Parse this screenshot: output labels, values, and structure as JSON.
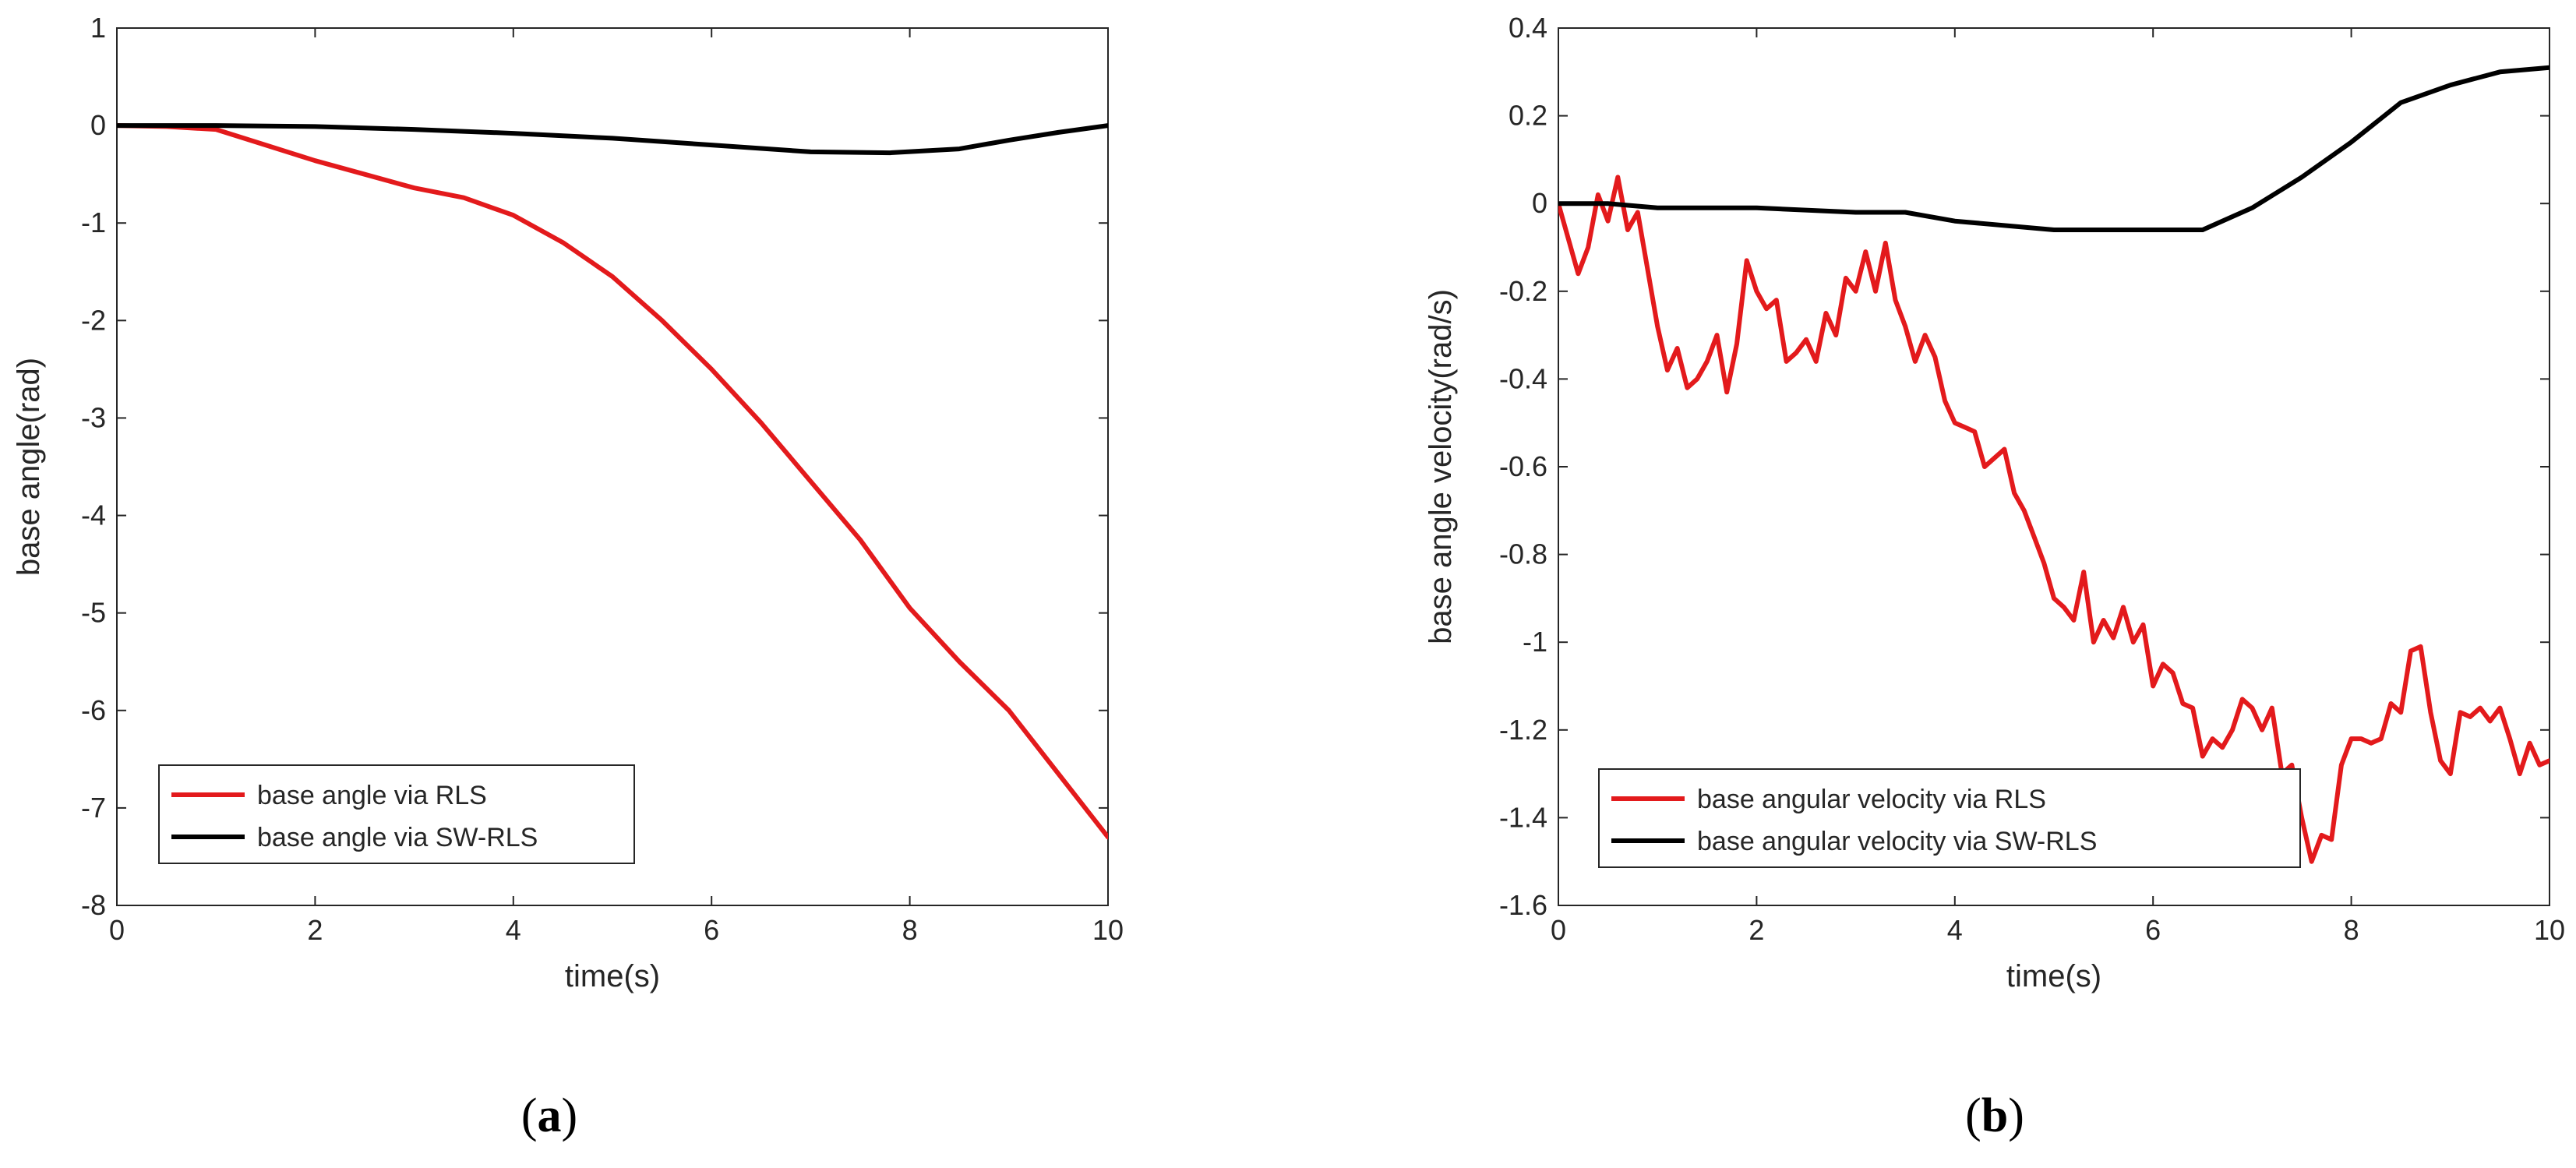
{
  "colors": {
    "rls": "#e31a1c",
    "swrls": "#000000",
    "axis": "#262626",
    "background": "#ffffff"
  },
  "chart_data": [
    {
      "type": "line",
      "panel": "a",
      "caption": {
        "open": "(",
        "letter": "a",
        "close": ")"
      },
      "title": "",
      "xlabel": "time(s)",
      "ylabel": "base angle(rad)",
      "xlim": [
        0,
        10
      ],
      "ylim": [
        -8,
        1
      ],
      "xticks": [
        0,
        2,
        4,
        6,
        8,
        10
      ],
      "xtick_labels": [
        "0",
        "2",
        "4",
        "6",
        "8",
        "10"
      ],
      "yticks": [
        1,
        0,
        -1,
        -2,
        -3,
        -4,
        -5,
        -6,
        -7,
        -8
      ],
      "ytick_labels": [
        "1",
        "0",
        "-1",
        "-2",
        "-3",
        "-4",
        "-5",
        "-6",
        "-7",
        "-8"
      ],
      "grid": false,
      "legend_position": "bottom-left",
      "series": [
        {
          "name": "base angle via RLS",
          "color": "#e31a1c",
          "points": [
            [
              0,
              0
            ],
            [
              0.5,
              -0.01
            ],
            [
              1,
              -0.04
            ],
            [
              1.5,
              -0.2
            ],
            [
              2,
              -0.36
            ],
            [
              2.5,
              -0.5
            ],
            [
              3,
              -0.64
            ],
            [
              3.5,
              -0.74
            ],
            [
              4,
              -0.92
            ],
            [
              4.5,
              -1.2
            ],
            [
              5,
              -1.55
            ],
            [
              5.5,
              -2.0
            ],
            [
              6,
              -2.5
            ],
            [
              6.5,
              -3.05
            ],
            [
              7,
              -3.65
            ],
            [
              7.5,
              -4.25
            ],
            [
              8,
              -4.95
            ],
            [
              8.5,
              -5.5
            ],
            [
              9,
              -6.0
            ],
            [
              9.5,
              -6.65
            ],
            [
              10,
              -7.3
            ]
          ]
        },
        {
          "name": "base angle via SW-RLS",
          "color": "#000000",
          "points": [
            [
              0,
              0
            ],
            [
              1,
              0
            ],
            [
              2,
              -0.01
            ],
            [
              3,
              -0.04
            ],
            [
              4,
              -0.08
            ],
            [
              5,
              -0.13
            ],
            [
              6,
              -0.2
            ],
            [
              7,
              -0.27
            ],
            [
              7.8,
              -0.28
            ],
            [
              8.5,
              -0.24
            ],
            [
              9,
              -0.15
            ],
            [
              9.5,
              -0.07
            ],
            [
              10,
              0
            ]
          ]
        }
      ]
    },
    {
      "type": "line",
      "panel": "b",
      "caption": {
        "open": "(",
        "letter": "b",
        "close": ")"
      },
      "title": "",
      "xlabel": "time(s)",
      "ylabel": "base angle velocity(rad/s)",
      "xlim": [
        0,
        10
      ],
      "ylim": [
        -1.6,
        0.4
      ],
      "xticks": [
        0,
        2,
        4,
        6,
        8,
        10
      ],
      "xtick_labels": [
        "0",
        "2",
        "4",
        "6",
        "8",
        "10"
      ],
      "yticks": [
        0.4,
        0.2,
        0,
        -0.2,
        -0.4,
        -0.6,
        -0.8,
        -1,
        -1.2,
        -1.4,
        -1.6
      ],
      "ytick_labels": [
        "0.4",
        "0.2",
        "0",
        "-0.2",
        "-0.4",
        "-0.6",
        "-0.8",
        "-1",
        "-1.2",
        "-1.4",
        "-1.6"
      ],
      "grid": false,
      "legend_position": "bottom-left",
      "series": [
        {
          "name": "base angular velocity via RLS",
          "color": "#e31a1c",
          "points": [
            [
              0,
              0
            ],
            [
              0.1,
              -0.08
            ],
            [
              0.2,
              -0.16
            ],
            [
              0.3,
              -0.1
            ],
            [
              0.4,
              0.02
            ],
            [
              0.5,
              -0.04
            ],
            [
              0.6,
              0.06
            ],
            [
              0.7,
              -0.06
            ],
            [
              0.8,
              -0.02
            ],
            [
              0.9,
              -0.15
            ],
            [
              1.0,
              -0.28
            ],
            [
              1.1,
              -0.38
            ],
            [
              1.2,
              -0.33
            ],
            [
              1.3,
              -0.42
            ],
            [
              1.4,
              -0.4
            ],
            [
              1.5,
              -0.36
            ],
            [
              1.6,
              -0.3
            ],
            [
              1.7,
              -0.43
            ],
            [
              1.8,
              -0.32
            ],
            [
              1.9,
              -0.13
            ],
            [
              2.0,
              -0.2
            ],
            [
              2.1,
              -0.24
            ],
            [
              2.2,
              -0.22
            ],
            [
              2.3,
              -0.36
            ],
            [
              2.4,
              -0.34
            ],
            [
              2.5,
              -0.31
            ],
            [
              2.6,
              -0.36
            ],
            [
              2.7,
              -0.25
            ],
            [
              2.8,
              -0.3
            ],
            [
              2.9,
              -0.17
            ],
            [
              3.0,
              -0.2
            ],
            [
              3.1,
              -0.11
            ],
            [
              3.2,
              -0.2
            ],
            [
              3.3,
              -0.09
            ],
            [
              3.4,
              -0.22
            ],
            [
              3.5,
              -0.28
            ],
            [
              3.6,
              -0.36
            ],
            [
              3.7,
              -0.3
            ],
            [
              3.8,
              -0.35
            ],
            [
              3.9,
              -0.45
            ],
            [
              4.0,
              -0.5
            ],
            [
              4.1,
              -0.51
            ],
            [
              4.2,
              -0.52
            ],
            [
              4.3,
              -0.6
            ],
            [
              4.4,
              -0.58
            ],
            [
              4.5,
              -0.56
            ],
            [
              4.6,
              -0.66
            ],
            [
              4.7,
              -0.7
            ],
            [
              4.8,
              -0.76
            ],
            [
              4.9,
              -0.82
            ],
            [
              5.0,
              -0.9
            ],
            [
              5.1,
              -0.92
            ],
            [
              5.2,
              -0.95
            ],
            [
              5.3,
              -0.84
            ],
            [
              5.4,
              -1.0
            ],
            [
              5.5,
              -0.95
            ],
            [
              5.6,
              -0.99
            ],
            [
              5.7,
              -0.92
            ],
            [
              5.8,
              -1.0
            ],
            [
              5.9,
              -0.96
            ],
            [
              6.0,
              -1.1
            ],
            [
              6.1,
              -1.05
            ],
            [
              6.2,
              -1.07
            ],
            [
              6.3,
              -1.14
            ],
            [
              6.4,
              -1.15
            ],
            [
              6.5,
              -1.26
            ],
            [
              6.6,
              -1.22
            ],
            [
              6.7,
              -1.24
            ],
            [
              6.8,
              -1.2
            ],
            [
              6.9,
              -1.13
            ],
            [
              7.0,
              -1.15
            ],
            [
              7.1,
              -1.2
            ],
            [
              7.2,
              -1.15
            ],
            [
              7.3,
              -1.3
            ],
            [
              7.4,
              -1.28
            ],
            [
              7.5,
              -1.4
            ],
            [
              7.6,
              -1.5
            ],
            [
              7.7,
              -1.44
            ],
            [
              7.8,
              -1.45
            ],
            [
              7.9,
              -1.28
            ],
            [
              8.0,
              -1.22
            ],
            [
              8.1,
              -1.22
            ],
            [
              8.2,
              -1.23
            ],
            [
              8.3,
              -1.22
            ],
            [
              8.4,
              -1.14
            ],
            [
              8.5,
              -1.16
            ],
            [
              8.6,
              -1.02
            ],
            [
              8.7,
              -1.01
            ],
            [
              8.8,
              -1.16
            ],
            [
              8.9,
              -1.27
            ],
            [
              9.0,
              -1.3
            ],
            [
              9.1,
              -1.16
            ],
            [
              9.2,
              -1.17
            ],
            [
              9.3,
              -1.15
            ],
            [
              9.4,
              -1.18
            ],
            [
              9.5,
              -1.15
            ],
            [
              9.6,
              -1.22
            ],
            [
              9.7,
              -1.3
            ],
            [
              9.8,
              -1.23
            ],
            [
              9.9,
              -1.28
            ],
            [
              10,
              -1.27
            ]
          ]
        },
        {
          "name": "base angular velocity via SW-RLS",
          "color": "#000000",
          "points": [
            [
              0,
              0
            ],
            [
              0.5,
              0
            ],
            [
              1,
              -0.01
            ],
            [
              2,
              -0.01
            ],
            [
              3,
              -0.02
            ],
            [
              3.5,
              -0.02
            ],
            [
              4,
              -0.04
            ],
            [
              5,
              -0.06
            ],
            [
              6,
              -0.06
            ],
            [
              6.5,
              -0.06
            ],
            [
              7,
              -0.01
            ],
            [
              7.5,
              0.06
            ],
            [
              8,
              0.14
            ],
            [
              8.5,
              0.23
            ],
            [
              9,
              0.27
            ],
            [
              9.5,
              0.3
            ],
            [
              10,
              0.31
            ]
          ]
        }
      ]
    }
  ]
}
